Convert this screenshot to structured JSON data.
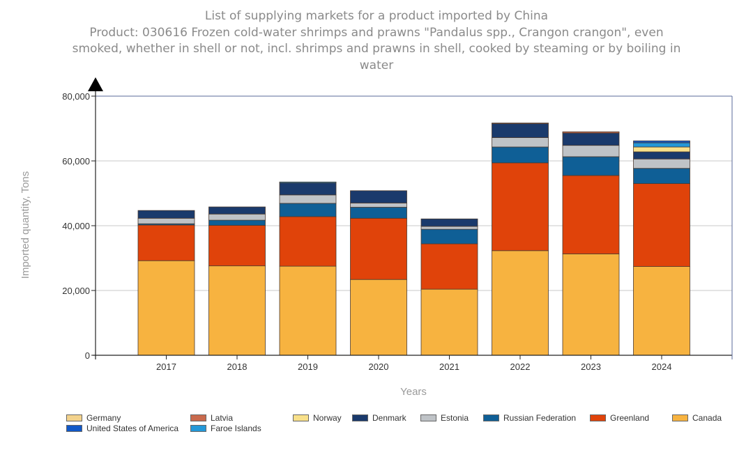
{
  "chart_data": {
    "type": "bar",
    "stacked": true,
    "title": "List of supplying markets for a product imported by China",
    "subtitle_lines": [
      "Product: 030616 Frozen cold-water shrimps and prawns \"Pandalus spp., Crangon crangon\", even",
      "smoked, whether in shell or not, incl. shrimps and prawns in shell, cooked by steaming or by boiling in",
      "water"
    ],
    "xlabel": "Years",
    "ylabel": "Imported quantity, Tons",
    "ylim": [
      0,
      80000
    ],
    "yticks": [
      0,
      20000,
      40000,
      60000,
      80000
    ],
    "ytick_labels": [
      "0",
      "20,000",
      "40,000",
      "60,000",
      "80,000"
    ],
    "grid": true,
    "legend_position": "bottom",
    "categories": [
      "2017",
      "2018",
      "2019",
      "2020",
      "2021",
      "2022",
      "2023",
      "2024"
    ],
    "series": [
      {
        "name": "Canada",
        "color": "#f7b340",
        "values": [
          29200,
          27600,
          27500,
          23400,
          20400,
          32300,
          31300,
          27400
        ]
      },
      {
        "name": "Greenland",
        "color": "#e0430a",
        "values": [
          11000,
          12500,
          15300,
          18900,
          14000,
          27100,
          24200,
          25600
        ]
      },
      {
        "name": "Russian Federation",
        "color": "#0f5f96",
        "values": [
          400,
          1600,
          4100,
          3400,
          4500,
          4900,
          5800,
          4700
        ]
      },
      {
        "name": "Estonia",
        "color": "#bfc3c7",
        "values": [
          1700,
          1900,
          2600,
          1300,
          900,
          2900,
          3500,
          2900
        ]
      },
      {
        "name": "Denmark",
        "color": "#1a3a6c",
        "values": [
          2400,
          2200,
          3700,
          3800,
          2300,
          4300,
          3800,
          2200
        ]
      },
      {
        "name": "Norway",
        "color": "#f8e08a",
        "values": [
          0,
          0,
          0,
          0,
          0,
          0,
          0,
          1500
        ]
      },
      {
        "name": "Faroe Islands",
        "color": "#2498d8",
        "values": [
          0,
          0,
          300,
          0,
          0,
          0,
          0,
          1300
        ]
      },
      {
        "name": "Latvia",
        "color": "#c96a4d",
        "values": [
          0,
          0,
          0,
          0,
          0,
          200,
          400,
          0
        ]
      },
      {
        "name": "United States of America",
        "color": "#1058c8",
        "values": [
          0,
          0,
          0,
          0,
          0,
          0,
          0,
          600
        ]
      },
      {
        "name": "Germany",
        "color": "#f3d28c",
        "values": [
          0,
          0,
          0,
          0,
          0,
          0,
          0,
          0
        ]
      }
    ],
    "legend_rows": [
      [
        "Germany",
        "Latvia",
        "Norway",
        "Denmark",
        "Estonia",
        "Russian Federation",
        "Greenland",
        "Canada"
      ],
      [
        "United States of America",
        "Faroe Islands"
      ]
    ]
  }
}
